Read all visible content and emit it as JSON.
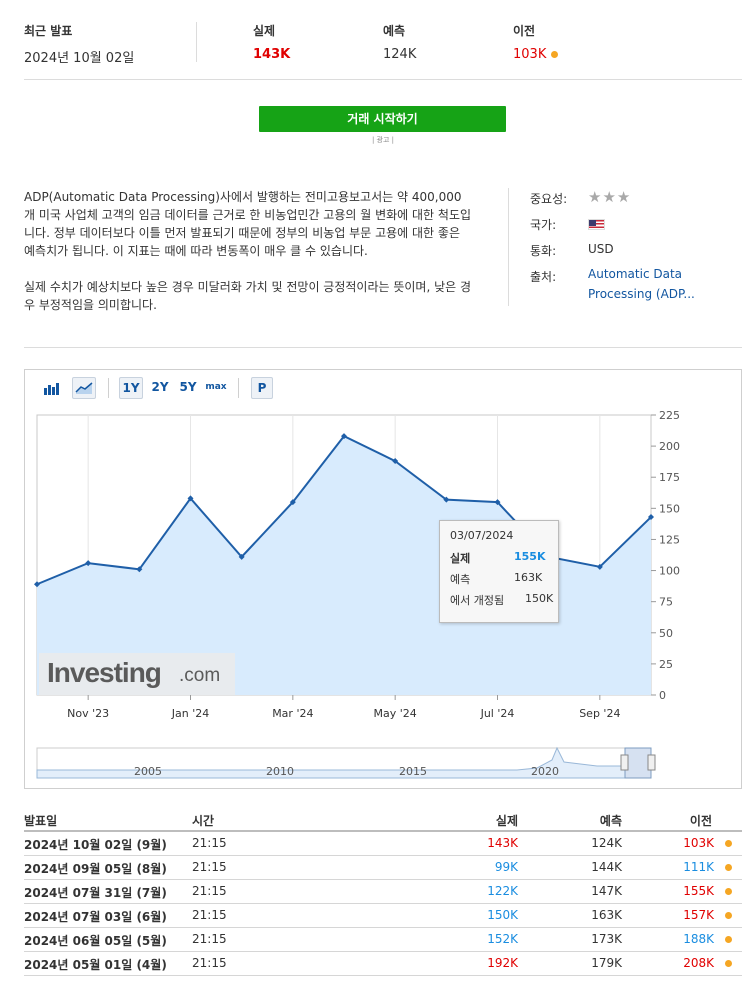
{
  "header": {
    "latest_label": "최근 발표",
    "latest_date": "2024년 10월 02일",
    "actual_label": "실제",
    "actual_value": "143K",
    "forecast_label": "예측",
    "forecast_value": "124K",
    "previous_label": "이전",
    "previous_value": "103K"
  },
  "trade_button": "거래 시작하기",
  "ad_label": "| 광고 |",
  "description": {
    "p1": "ADP(Automatic Data Processing)사에서 발행하는 전미고용보고서는 약 400,000개 미국 사업체 고객의 임금 데이터를 근거로 한 비농업민간 고용의 월 변화에 대한 척도입니다. 정부 데이터보다 이틀 먼저 발표되기 때문에 정부의 비농업 부문 고용에 대한 좋은 예측치가 됩니다. 이 지표는 때에 따라 변동폭이 매우 클 수 있습니다.",
    "p2": "실제 수치가 예상치보다 높은 경우 미달러화 가치 및 전망이 긍정적이라는 뜻이며, 낮은 경우 부정적임을 의미합니다."
  },
  "info": {
    "importance_label": "중요성:",
    "importance_stars": 3,
    "country_label": "국가:",
    "country_icon": "us-flag-icon",
    "currency_label": "통화:",
    "currency_value": "USD",
    "source_label": "출처:",
    "source_value": "Automatic Data Processing (ADP..."
  },
  "toolbar": {
    "ranges": [
      "1Y",
      "2Y",
      "5Y",
      "max"
    ],
    "active_range": "1Y",
    "p_label": "P",
    "icons": [
      "bar-chart-icon",
      "area-chart-icon"
    ]
  },
  "chart_data": {
    "type": "area",
    "x_labels": [
      "Nov '23",
      "Jan '24",
      "Mar '24",
      "May '24",
      "Jul '24",
      "Sep '24"
    ],
    "x": [
      "2023-10",
      "2023-11",
      "2023-12",
      "2024-01",
      "2024-02",
      "2024-03",
      "2024-04",
      "2024-05",
      "2024-06",
      "2024-07",
      "2024-08",
      "2024-09",
      "2024-10"
    ],
    "values": [
      89,
      106,
      101,
      158,
      111,
      155,
      208,
      188,
      157,
      155,
      111,
      103,
      143
    ],
    "y_ticks": [
      0,
      25,
      50,
      75,
      100,
      125,
      150,
      175,
      200,
      225
    ],
    "ylim": [
      0,
      225
    ],
    "navigator_years": [
      "2005",
      "2010",
      "2015",
      "2020"
    ],
    "colors": {
      "line": "#1f5fa8",
      "fill": "#d8ebfd"
    },
    "tooltip": {
      "date": "03/07/2024",
      "actual_label": "실제",
      "actual": "155K",
      "forecast_label": "예측",
      "forecast": "163K",
      "revised_label": "에서 개정됨",
      "revised": "150K"
    }
  },
  "logo": {
    "main": "Investing",
    "suffix": ".com"
  },
  "table": {
    "headers": {
      "date": "발표일",
      "time": "시간",
      "actual": "실제",
      "forecast": "예측",
      "previous": "이전"
    },
    "rows": [
      {
        "date": "2024년 10월 02일 (9월)",
        "time": "21:15",
        "actual": "143K",
        "actual_color": "#e00000",
        "forecast": "124K",
        "previous": "103K",
        "previous_color": "#e00000"
      },
      {
        "date": "2024년 09월 05일 (8월)",
        "time": "21:15",
        "actual": "99K",
        "actual_color": "#1a8de0",
        "forecast": "144K",
        "previous": "111K",
        "previous_color": "#1a8de0"
      },
      {
        "date": "2024년 07월 31일 (7월)",
        "time": "21:15",
        "actual": "122K",
        "actual_color": "#1a8de0",
        "forecast": "147K",
        "previous": "155K",
        "previous_color": "#e00000"
      },
      {
        "date": "2024년 07월 03일 (6월)",
        "time": "21:15",
        "actual": "150K",
        "actual_color": "#1a8de0",
        "forecast": "163K",
        "previous": "157K",
        "previous_color": "#e00000"
      },
      {
        "date": "2024년 06월 05일 (5월)",
        "time": "21:15",
        "actual": "152K",
        "actual_color": "#1a8de0",
        "forecast": "173K",
        "previous": "188K",
        "previous_color": "#1a8de0"
      },
      {
        "date": "2024년 05월 01일 (4월)",
        "time": "21:15",
        "actual": "192K",
        "actual_color": "#e00000",
        "forecast": "179K",
        "previous": "208K",
        "previous_color": "#e00000"
      }
    ]
  }
}
